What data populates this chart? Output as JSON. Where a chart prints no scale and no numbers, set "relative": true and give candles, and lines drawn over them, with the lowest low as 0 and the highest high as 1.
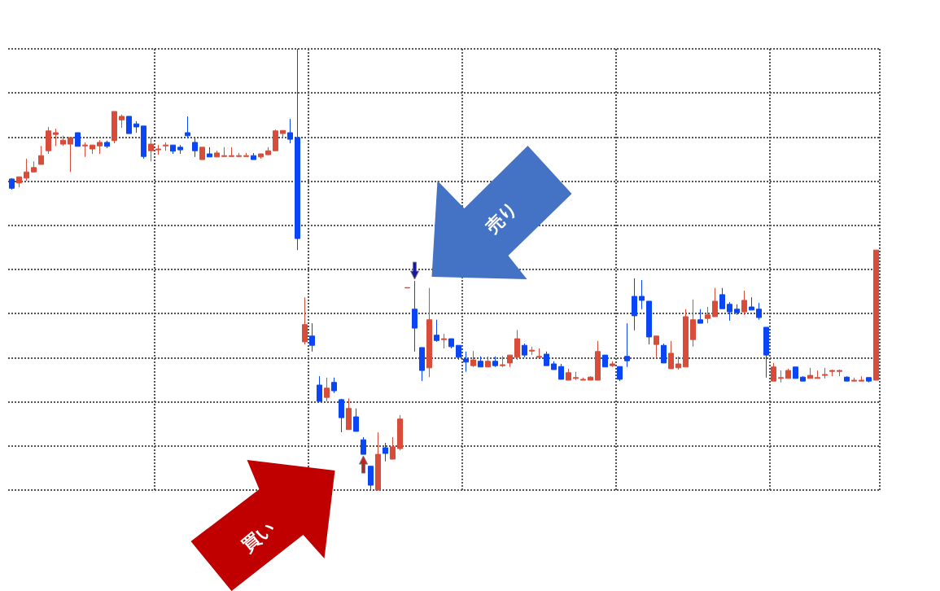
{
  "chart_data": {
    "type": "candlestick",
    "relative": true,
    "grid": true,
    "annotations": [
      "売り",
      "買い"
    ],
    "categories": [
      null,
      null,
      null,
      null,
      null,
      null,
      null,
      null,
      null,
      null,
      null,
      null,
      null,
      null,
      null,
      null,
      null,
      null,
      null,
      null,
      null,
      null,
      null,
      null,
      null,
      null,
      null,
      null,
      null,
      null,
      null,
      null,
      null,
      null,
      null,
      null,
      null,
      null,
      null,
      null,
      null,
      null,
      null,
      null,
      null,
      null,
      null,
      null,
      null,
      null,
      null,
      null,
      null,
      null,
      null,
      null,
      null,
      null,
      null,
      null,
      null,
      null,
      null,
      null,
      null,
      null,
      null,
      null,
      null,
      null,
      null,
      null,
      null,
      null,
      null,
      null,
      null,
      null,
      null,
      null,
      null,
      null,
      null,
      null,
      null,
      null,
      null,
      null,
      null,
      null,
      null,
      null,
      null,
      null,
      null,
      null,
      null,
      null,
      null,
      null,
      null,
      null,
      null,
      null,
      null,
      null,
      null,
      null,
      null,
      null,
      null,
      null,
      null,
      null,
      null,
      null,
      null,
      null,
      null
    ],
    "ohlc": [
      [
        0.705,
        0.707,
        0.681,
        0.684
      ],
      [
        0.696,
        0.71,
        0.686,
        0.71
      ],
      [
        0.707,
        0.751,
        0.701,
        0.721
      ],
      [
        0.721,
        0.745,
        0.721,
        0.731
      ],
      [
        0.738,
        0.78,
        0.738,
        0.758
      ],
      [
        0.769,
        0.823,
        0.762,
        0.814
      ],
      [
        0.806,
        0.819,
        0.78,
        0.81
      ],
      [
        0.784,
        0.803,
        0.78,
        0.793
      ],
      [
        0.784,
        0.799,
        0.721,
        0.799
      ],
      [
        0.81,
        0.81,
        0.779,
        0.779
      ],
      [
        0.78,
        0.788,
        0.755,
        0.782
      ],
      [
        0.773,
        0.782,
        0.762,
        0.782
      ],
      [
        0.78,
        0.793,
        0.762,
        0.788
      ],
      [
        0.788,
        0.792,
        0.775,
        0.779
      ],
      [
        0.792,
        0.858,
        0.786,
        0.858
      ],
      [
        0.839,
        0.851,
        0.821,
        0.847
      ],
      [
        0.847,
        0.847,
        0.808,
        0.808
      ],
      [
        0.83,
        0.836,
        0.81,
        0.823
      ],
      [
        0.825,
        0.825,
        0.751,
        0.756
      ],
      [
        0.769,
        0.799,
        0.745,
        0.784
      ],
      [
        0.771,
        0.782,
        0.76,
        0.773
      ],
      [
        0.78,
        0.788,
        0.769,
        0.782
      ],
      [
        0.782,
        0.782,
        0.762,
        0.768
      ],
      [
        0.777,
        0.782,
        0.762,
        0.771
      ],
      [
        0.81,
        0.847,
        0.797,
        0.803
      ],
      [
        0.788,
        0.799,
        0.755,
        0.769
      ],
      [
        0.749,
        0.777,
        0.749,
        0.777
      ],
      [
        0.762,
        0.777,
        0.755,
        0.755
      ],
      [
        0.755,
        0.769,
        0.755,
        0.764
      ],
      [
        0.756,
        0.777,
        0.756,
        0.758
      ],
      [
        0.756,
        0.777,
        0.756,
        0.758
      ],
      [
        0.756,
        0.764,
        0.756,
        0.758
      ],
      [
        0.756,
        0.764,
        0.756,
        0.758
      ],
      [
        0.758,
        0.764,
        0.749,
        0.749
      ],
      [
        0.755,
        0.762,
        0.751,
        0.762
      ],
      [
        0.76,
        0.777,
        0.76,
        0.769
      ],
      [
        0.769,
        0.817,
        0.769,
        0.814
      ],
      [
        0.808,
        0.815,
        0.797,
        0.815
      ],
      [
        0.81,
        0.841,
        0.786,
        0.795
      ],
      [
        0.799,
        1,
        0.544,
        0.57
      ],
      [
        0.336,
        0.437,
        0.33,
        0.375
      ],
      [
        0.349,
        0.378,
        0.314,
        0.328
      ],
      [
        0.238,
        0.258,
        0.201,
        0.201
      ],
      [
        0.21,
        0.255,
        0.201,
        0.231
      ],
      [
        0.244,
        0.255,
        0.22,
        0.225
      ],
      [
        0.205,
        0.207,
        0.131,
        0.164
      ],
      [
        0.137,
        0.208,
        0.137,
        0.185
      ],
      [
        0.166,
        0.185,
        0.133,
        0.133
      ],
      [
        0.114,
        0.12,
        0.081,
        0.081
      ],
      [
        0.054,
        0.054,
        0,
        0.011
      ],
      [
        0,
        0.131,
        0,
        0.081
      ],
      [
        0.096,
        0.107,
        0.065,
        0.083
      ],
      [
        0.07,
        0.12,
        0.07,
        0.098
      ],
      [
        0.094,
        0.17,
        0.09,
        0.161
      ],
      [
        0.458,
        0.459,
        0.458,
        0.459
      ],
      [
        0.41,
        0.474,
        0.314,
        0.367
      ],
      [
        0.323,
        0.323,
        0.247,
        0.271
      ],
      [
        0.277,
        0.458,
        0.256,
        0.386
      ],
      [
        0.351,
        0.386,
        0.336,
        0.339
      ],
      [
        0.341,
        0.354,
        0.321,
        0.343
      ],
      [
        0.343,
        0.343,
        0.321,
        0.325
      ],
      [
        0.328,
        0.328,
        0.295,
        0.301
      ],
      [
        0.297,
        0.314,
        0.268,
        0.29
      ],
      [
        0.282,
        0.315,
        0.279,
        0.295
      ],
      [
        0.292,
        0.303,
        0.279,
        0.279
      ],
      [
        0.279,
        0.303,
        0.279,
        0.292
      ],
      [
        0.292,
        0.303,
        0.279,
        0.282
      ],
      [
        0.282,
        0.304,
        0.279,
        0.284
      ],
      [
        0.288,
        0.306,
        0.279,
        0.306
      ],
      [
        0.301,
        0.363,
        0.295,
        0.343
      ],
      [
        0.328,
        0.332,
        0.301,
        0.306
      ],
      [
        0.315,
        0.325,
        0.306,
        0.317
      ],
      [
        0.301,
        0.321,
        0.301,
        0.303
      ],
      [
        0.308,
        0.314,
        0.282,
        0.282
      ],
      [
        0.286,
        0.292,
        0.273,
        0.273
      ],
      [
        0.28,
        0.286,
        0.251,
        0.251
      ],
      [
        0.249,
        0.275,
        0.249,
        0.266
      ],
      [
        0.253,
        0.268,
        0.249,
        0.255
      ],
      [
        0.249,
        0.255,
        0.249,
        0.251
      ],
      [
        0.249,
        0.258,
        0.249,
        0.256
      ],
      [
        0.249,
        0.338,
        0.249,
        0.314
      ],
      [
        0.306,
        0.306,
        0.279,
        0.279
      ],
      [
        0.282,
        0.292,
        0.279,
        0.286
      ],
      [
        0.28,
        0.28,
        0.247,
        0.251
      ],
      [
        0.303,
        0.378,
        0.279,
        0.293
      ],
      [
        0.439,
        0.48,
        0.362,
        0.395
      ],
      [
        0.439,
        0.476,
        0.41,
        0.43
      ],
      [
        0.428,
        0.428,
        0.33,
        0.347
      ],
      [
        0.33,
        0.349,
        0.301,
        0.349
      ],
      [
        0.328,
        0.332,
        0.288,
        0.288
      ],
      [
        0.275,
        0.338,
        0.275,
        0.31
      ],
      [
        0.277,
        0.303,
        0.273,
        0.286
      ],
      [
        0.279,
        0.41,
        0.279,
        0.393
      ],
      [
        0.341,
        0.432,
        0.325,
        0.386
      ],
      [
        0.386,
        0.41,
        0.378,
        0.378
      ],
      [
        0.389,
        0.415,
        0.378,
        0.397
      ],
      [
        0.393,
        0.458,
        0.393,
        0.428
      ],
      [
        0.443,
        0.458,
        0.411,
        0.411
      ],
      [
        0.421,
        0.426,
        0.384,
        0.404
      ],
      [
        0.41,
        0.421,
        0.397,
        0.402
      ],
      [
        0.404,
        0.452,
        0.397,
        0.43
      ],
      [
        0.415,
        0.437,
        0.408,
        0.408
      ],
      [
        0.41,
        0.424,
        0.386,
        0.391
      ],
      [
        0.369,
        0.369,
        0.255,
        0.306
      ],
      [
        0.247,
        0.288,
        0.247,
        0.279
      ],
      [
        0.253,
        0.271,
        0.244,
        0.255
      ],
      [
        0.253,
        0.275,
        0.253,
        0.271
      ],
      [
        0.279,
        0.279,
        0.253,
        0.253
      ],
      [
        0.256,
        0.258,
        0.247,
        0.247
      ],
      [
        0.253,
        0.277,
        0.253,
        0.26
      ],
      [
        0.253,
        0.271,
        0.253,
        0.255
      ],
      [
        0.26,
        0.277,
        0.253,
        0.262
      ],
      [
        0.269,
        0.273,
        0.258,
        0.271
      ],
      [
        0.269,
        0.273,
        0.258,
        0.271
      ],
      [
        0.256,
        0.258,
        0.247,
        0.247
      ],
      [
        0.247,
        0.255,
        0.247,
        0.249
      ],
      [
        0.247,
        0.258,
        0.247,
        0.249
      ],
      [
        0.255,
        0.255,
        0.244,
        0.247
      ],
      [
        0.249,
        0.544,
        0.249,
        0.544
      ]
    ],
    "colors": [
      "#0a46f5",
      "#d94c3a",
      "#d94c3a",
      "#d94c3a",
      "#d94c3a",
      "#d94c3a",
      "#d94c3a",
      "#d94c3a",
      "#d94c3a",
      "#0a46f5",
      "#d94c3a",
      "#d94c3a",
      "#d94c3a",
      "#0a46f5",
      "#d94c3a",
      "#d94c3a",
      "#0a46f5",
      "#0a46f5",
      "#0a46f5",
      "#d94c3a",
      "#d94c3a",
      "#d94c3a",
      "#0a46f5",
      "#0a46f5",
      "#0a46f5",
      "#0a46f5",
      "#d94c3a",
      "#0a46f5",
      "#d94c3a",
      "#d94c3a",
      "#d94c3a",
      "#d94c3a",
      "#d94c3a",
      "#0a46f5",
      "#d94c3a",
      "#d94c3a",
      "#d94c3a",
      "#d94c3a",
      "#0a46f5",
      "#0a46f5",
      "#d94c3a",
      "#0a46f5",
      "#0a46f5",
      "#d94c3a",
      "#0a46f5",
      "#0a46f5",
      "#d94c3a",
      "#0a46f5",
      "#0a46f5",
      "#0a46f5",
      "#d94c3a",
      "#0a46f5",
      "#d94c3a",
      "#d94c3a",
      "#d94c3a",
      "#0a46f5",
      "#0a46f5",
      "#d94c3a",
      "#0a46f5",
      "#d94c3a",
      "#0a46f5",
      "#0a46f5",
      "#0a46f5",
      "#d94c3a",
      "#0a46f5",
      "#d94c3a",
      "#0a46f5",
      "#d94c3a",
      "#d94c3a",
      "#d94c3a",
      "#0a46f5",
      "#d94c3a",
      "#d94c3a",
      "#0a46f5",
      "#0a46f5",
      "#0a46f5",
      "#d94c3a",
      "#d94c3a",
      "#d94c3a",
      "#d94c3a",
      "#d94c3a",
      "#0a46f5",
      "#d94c3a",
      "#0a46f5",
      "#0a46f5",
      "#0a46f5",
      "#0a46f5",
      "#0a46f5",
      "#d94c3a",
      "#0a46f5",
      "#d94c3a",
      "#d94c3a",
      "#d94c3a",
      "#d94c3a",
      "#0a46f5",
      "#d94c3a",
      "#d94c3a",
      "#0a46f5",
      "#0a46f5",
      "#0a46f5",
      "#d94c3a",
      "#0a46f5",
      "#0a46f5",
      "#0a46f5",
      "#d94c3a",
      "#d94c3a",
      "#d94c3a",
      "#0a46f5",
      "#0a46f5",
      "#d94c3a",
      "#d94c3a",
      "#d94c3a",
      "#d94c3a",
      "#d94c3a",
      "#0a46f5",
      "#d94c3a",
      "#d94c3a",
      "#0a46f5",
      "#d94c3a"
    ]
  }
}
